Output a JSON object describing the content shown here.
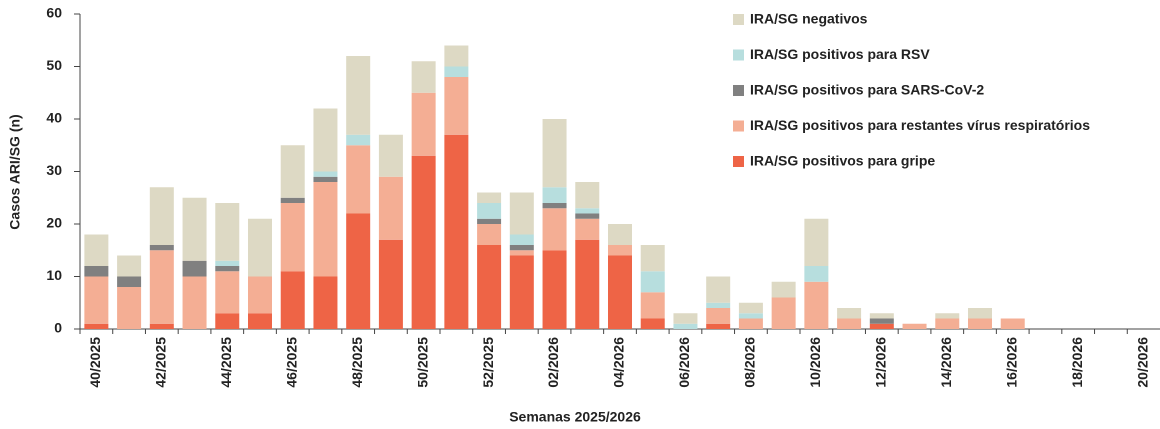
{
  "chart_data": {
    "type": "stacked_bar",
    "x_label": "Semanas 2025/2026",
    "y_label": "Casos ARI/SG (n)",
    "categories": [
      "40/2025",
      null,
      "42/2025",
      null,
      "44/2025",
      null,
      "46/2025",
      null,
      "48/2025",
      null,
      "50/2025",
      null,
      "52/2025",
      null,
      "02/2026",
      null,
      "04/2026",
      null,
      "06/2026",
      null,
      "08/2026",
      null,
      "10/2026",
      null,
      "12/2026",
      null,
      "14/2026",
      null,
      "16/2026",
      null,
      "18/2026",
      null,
      "20/2026"
    ],
    "series": [
      {
        "name": "IRA/SG positivos para gripe",
        "color": "#ee6446",
        "values": [
          1,
          0,
          1,
          0,
          3,
          3,
          11,
          10,
          22,
          17,
          33,
          37,
          16,
          14,
          15,
          17,
          14,
          2,
          0,
          1,
          0,
          0,
          0,
          0,
          1,
          0,
          0,
          0,
          0,
          0,
          0,
          0,
          0
        ]
      },
      {
        "name": "IRA/SG positivos para restantes vírus respiratórios",
        "color": "#f4ae94",
        "values": [
          9,
          8,
          14,
          10,
          8,
          7,
          13,
          18,
          13,
          12,
          12,
          11,
          4,
          1,
          8,
          4,
          2,
          5,
          0,
          3,
          2,
          6,
          9,
          2,
          0,
          1,
          2,
          2,
          2,
          0,
          0,
          0,
          0
        ]
      },
      {
        "name": "IRA/SG positivos para SARS-CoV-2",
        "color": "#808080",
        "values": [
          2,
          2,
          1,
          3,
          1,
          0,
          1,
          1,
          0,
          0,
          0,
          0,
          1,
          1,
          1,
          1,
          0,
          0,
          0,
          0,
          0,
          0,
          0,
          0,
          1,
          0,
          0,
          0,
          0,
          0,
          0,
          0,
          0
        ]
      },
      {
        "name": "IRA/SG positivos para RSV",
        "color": "#b7dede",
        "values": [
          0,
          0,
          0,
          0,
          1,
          0,
          0,
          1,
          2,
          0,
          0,
          2,
          3,
          2,
          3,
          1,
          0,
          4,
          1,
          1,
          1,
          0,
          3,
          0,
          0,
          0,
          0,
          0,
          0,
          0,
          0,
          0,
          0
        ]
      },
      {
        "name": "IRA/SG negativos",
        "color": "#ddd9c4",
        "values": [
          6,
          4,
          11,
          12,
          11,
          11,
          10,
          12,
          15,
          8,
          6,
          4,
          2,
          8,
          13,
          5,
          4,
          5,
          2,
          5,
          2,
          3,
          9,
          2,
          1,
          0,
          1,
          2,
          0,
          0,
          0,
          0,
          0
        ]
      }
    ],
    "ylim": [
      0,
      60
    ],
    "yticks": [
      0,
      10,
      20,
      30,
      40,
      50,
      60
    ]
  }
}
